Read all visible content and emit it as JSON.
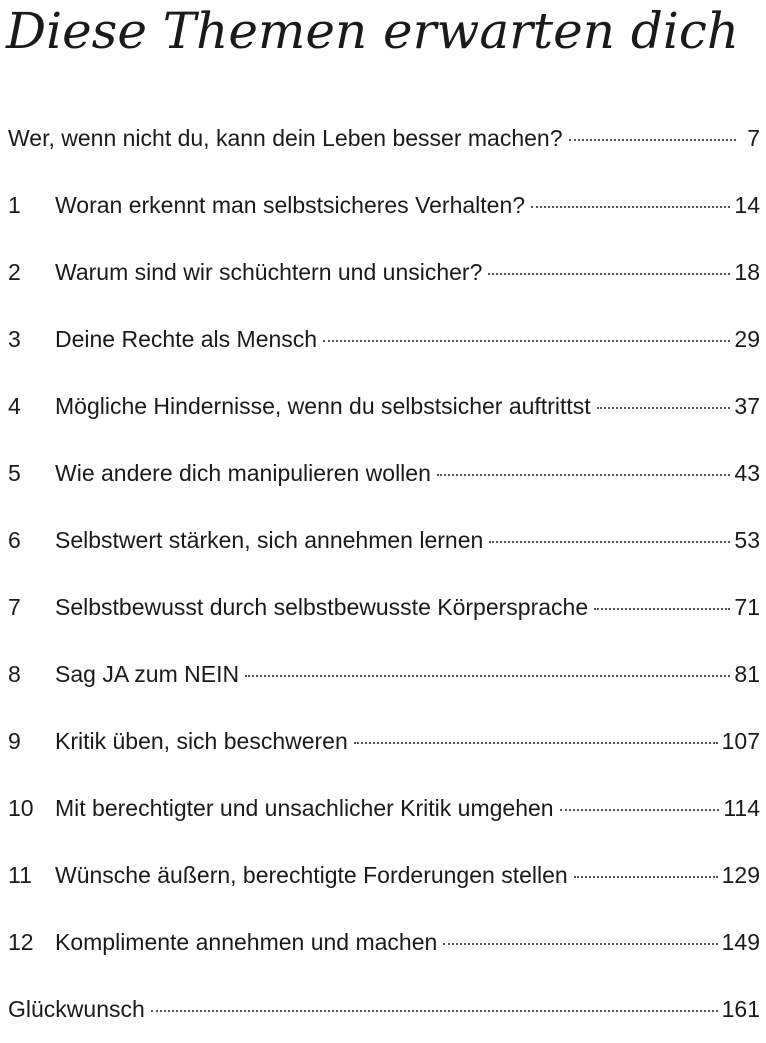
{
  "title": "Diese Themen erwarten dich",
  "toc": [
    {
      "num": "",
      "text": "Wer, wenn nicht du, kann dein Leben besser machen?",
      "page": "7"
    },
    {
      "num": "1",
      "text": "Woran erkennt man selbstsicheres Verhalten?",
      "page": "14"
    },
    {
      "num": "2",
      "text": "Warum sind wir schüchtern und unsicher?",
      "page": "18"
    },
    {
      "num": "3",
      "text": "Deine Rechte als Mensch",
      "page": "29"
    },
    {
      "num": "4",
      "text": "Mögliche Hindernisse, wenn du selbstsicher auftrittst",
      "page": "37"
    },
    {
      "num": "5",
      "text": "Wie andere dich manipulieren wollen",
      "page": "43"
    },
    {
      "num": "6",
      "text": "Selbstwert stärken, sich annehmen lernen",
      "page": "53"
    },
    {
      "num": "7",
      "text": "Selbstbewusst durch selbstbewusste Körpersprache",
      "page": "71"
    },
    {
      "num": "8",
      "text": "Sag JA zum NEIN",
      "page": "81"
    },
    {
      "num": "9",
      "text": "Kritik üben, sich beschweren",
      "page": "107"
    },
    {
      "num": "10",
      "text": "Mit berechtigter und unsachlicher Kritik umgehen",
      "page": "114"
    },
    {
      "num": "11",
      "text": "Wünsche äußern, berechtigte Forderungen stellen",
      "page": "129"
    },
    {
      "num": "12",
      "text": "Komplimente annehmen und machen",
      "page": "149"
    },
    {
      "num": "",
      "text": "Glückwunsch",
      "page": "161"
    }
  ]
}
